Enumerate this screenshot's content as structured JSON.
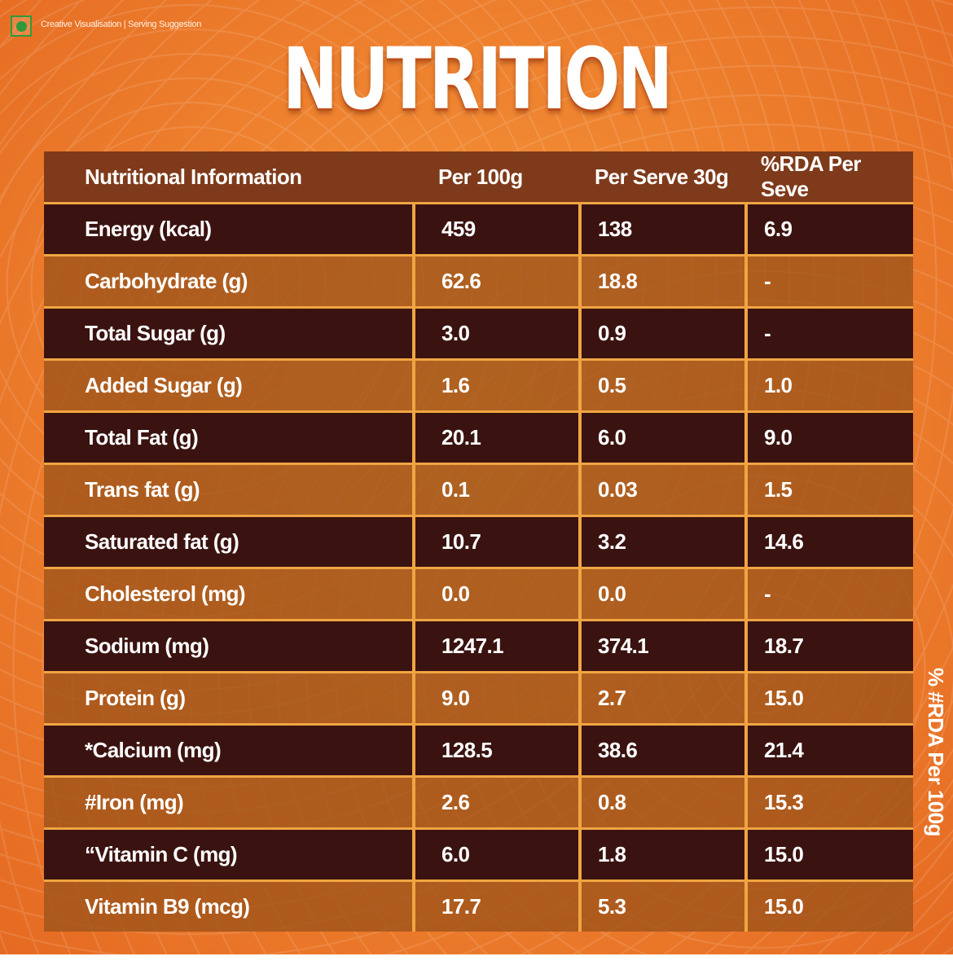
{
  "disclaimer": "Creative Visualisation | Serving Suggestion",
  "title": "NUTRITION",
  "side_note": "% #RDA Per 100g",
  "header": [
    "Nutritional Information",
    "Per 100g",
    "Per Serve 30g",
    "%RDA Per Seve"
  ],
  "rows": [
    [
      "Energy (kcal)",
      "459",
      "138",
      "6.9"
    ],
    [
      "Carbohydrate (g)",
      "62.6",
      "18.8",
      "-"
    ],
    [
      "Total Sugar (g)",
      "3.0",
      "0.9",
      "-"
    ],
    [
      "Added Sugar (g)",
      "1.6",
      "0.5",
      "1.0"
    ],
    [
      "Total Fat (g)",
      "20.1",
      "6.0",
      "9.0"
    ],
    [
      "Trans fat (g)",
      "0.1",
      "0.03",
      "1.5"
    ],
    [
      "Saturated fat (g)",
      "10.7",
      "3.2",
      "14.6"
    ],
    [
      "Cholesterol (mg)",
      "0.0",
      "0.0",
      "-"
    ],
    [
      "Sodium (mg)",
      "1247.1",
      "374.1",
      "18.7"
    ],
    [
      "Protein (g)",
      "9.0",
      "2.7",
      "15.0"
    ],
    [
      "*Calcium (mg)",
      "128.5",
      "38.6",
      "21.4"
    ],
    [
      "#Iron (mg)",
      "2.6",
      "0.8",
      "15.3"
    ],
    [
      "“Vitamin C (mg)",
      "6.0",
      "1.8",
      "15.0"
    ],
    [
      "Vitamin B9 (mcg)",
      "17.7",
      "5.3",
      "15.0"
    ]
  ]
}
